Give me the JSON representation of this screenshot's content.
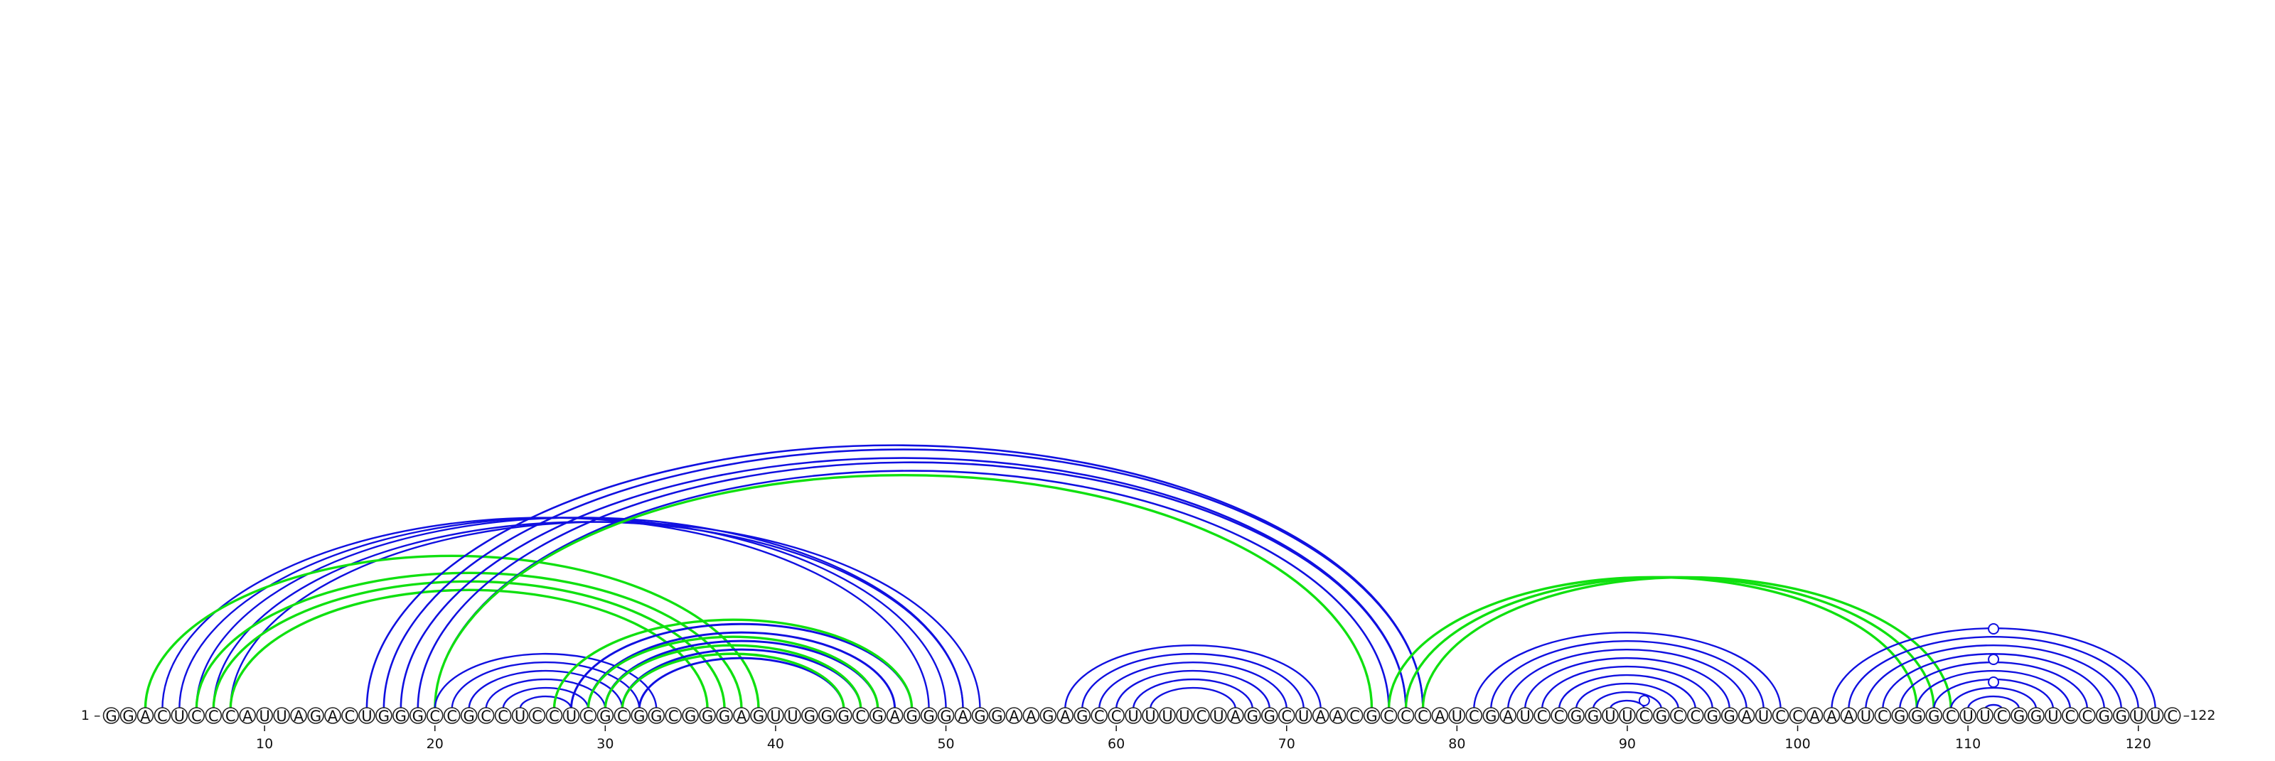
{
  "diagram": {
    "sequence": "GGACUCCCAUUAGACUGGGCCGCCUCCUCGCGGCGGGAGUUGGGCGAGGGAGGAAGAGCCUUUUCUAGGCUAACGCCCAUCGAUCCGGUUCGCCGGAUCCAAAUCGGGCUUCGGUCCGGUUC",
    "start_label": "1 –",
    "end_label": "–122",
    "tick_labels": [
      "10",
      "20",
      "30",
      "40",
      "50",
      "60",
      "70",
      "80",
      "90",
      "100",
      "110",
      "120"
    ],
    "tick_positions": [
      10,
      20,
      30,
      40,
      50,
      60,
      70,
      80,
      90,
      100,
      110,
      120
    ],
    "colors": {
      "blue": "#1010e0",
      "green": "#10e010",
      "circle_stroke": "#222222",
      "text": "#111111"
    },
    "helices": [
      {
        "color": "blue",
        "width": 2.4,
        "pairs": [
          [
            8,
            52
          ],
          [
            7,
            51
          ],
          [
            6,
            51
          ],
          [
            5,
            50
          ],
          [
            4,
            49
          ]
        ]
      },
      {
        "color": "green",
        "width": 3.4,
        "pairs": [
          [
            3,
            39
          ],
          [
            6,
            38
          ],
          [
            7,
            37
          ],
          [
            8,
            36
          ]
        ]
      },
      {
        "color": "blue",
        "width": 2.6,
        "pairs": [
          [
            16,
            78
          ],
          [
            17,
            78
          ],
          [
            18,
            77
          ],
          [
            19,
            77
          ],
          [
            20,
            76
          ]
        ]
      },
      {
        "color": "green",
        "width": 3.4,
        "pairs": [
          [
            20,
            75
          ]
        ]
      },
      {
        "color": "blue",
        "width": 2.4,
        "pairs": [
          [
            20,
            33
          ],
          [
            21,
            32
          ],
          [
            22,
            31
          ],
          [
            23,
            30
          ],
          [
            24,
            29
          ],
          [
            25,
            28
          ]
        ]
      },
      {
        "color": "blue",
        "width": 3.0,
        "pairs": [
          [
            28,
            48
          ],
          [
            29,
            47
          ],
          [
            30,
            46
          ],
          [
            31,
            45
          ],
          [
            32,
            44
          ]
        ]
      },
      {
        "color": "green",
        "width": 3.4,
        "pairs": [
          [
            27,
            48
          ],
          [
            29,
            46
          ],
          [
            30,
            45
          ],
          [
            31,
            44
          ]
        ]
      },
      {
        "color": "blue",
        "width": 2.4,
        "pairs": [
          [
            57,
            72
          ],
          [
            58,
            71
          ],
          [
            59,
            70
          ],
          [
            60,
            69
          ],
          [
            61,
            68
          ],
          [
            62,
            67
          ]
        ]
      },
      {
        "color": "green",
        "width": 3.4,
        "pairs": [
          [
            76,
            107
          ],
          [
            77,
            108
          ],
          [
            78,
            109
          ]
        ]
      },
      {
        "color": "blue",
        "width": 2.4,
        "pairs": [
          [
            81,
            99
          ],
          [
            82,
            98
          ],
          [
            83,
            97
          ],
          [
            84,
            96
          ],
          [
            85,
            95
          ],
          [
            86,
            94
          ],
          [
            87,
            93
          ],
          [
            88,
            92
          ],
          [
            89,
            91
          ]
        ]
      },
      {
        "color": "blue",
        "width": 2.4,
        "pairs": [
          [
            102,
            121
          ],
          [
            103,
            120
          ],
          [
            104,
            119
          ],
          [
            105,
            118
          ],
          [
            106,
            117
          ],
          [
            107,
            116
          ],
          [
            108,
            115
          ],
          [
            109,
            114
          ],
          [
            110,
            113
          ],
          [
            111,
            112
          ]
        ]
      }
    ],
    "marker_circles": [
      91,
      112,
      112,
      112
    ]
  }
}
